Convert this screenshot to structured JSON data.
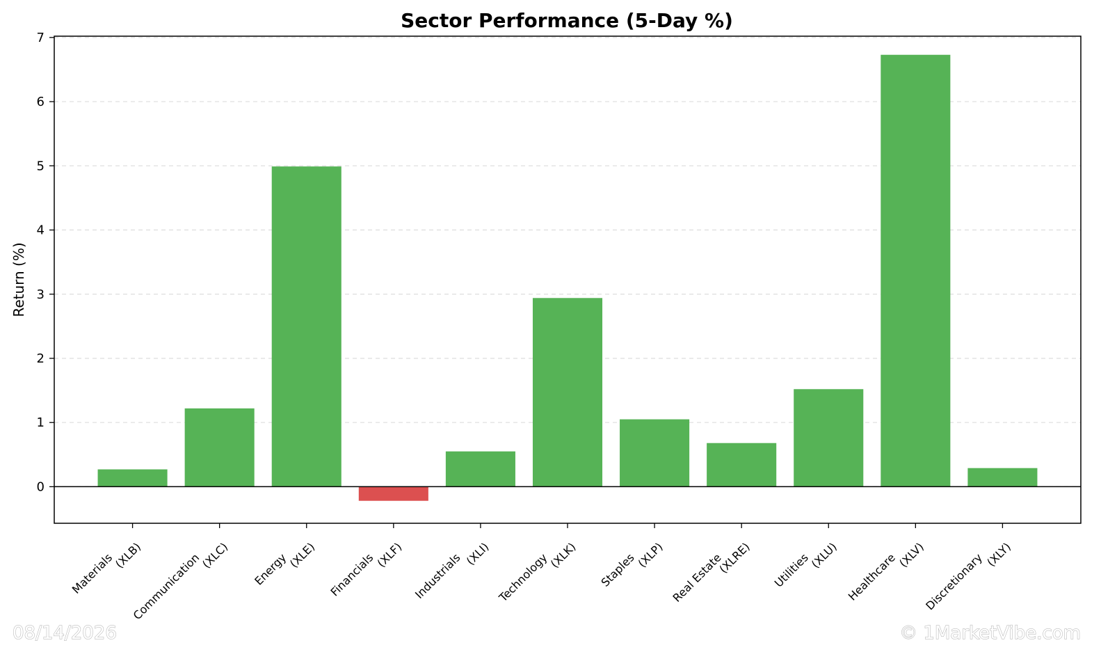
{
  "chart_data": {
    "type": "bar",
    "title": "Sector Performance (5-Day %)",
    "xlabel": "",
    "ylabel": "Return (%)",
    "categories": [
      [
        "Materials",
        "(XLB)"
      ],
      [
        "Communication",
        "(XLC)"
      ],
      [
        "Energy",
        "(XLE)"
      ],
      [
        "Financials",
        "(XLF)"
      ],
      [
        "Industrials",
        "(XLI)"
      ],
      [
        "Technology",
        "(XLK)"
      ],
      [
        "Staples",
        "(XLP)"
      ],
      [
        "Real Estate",
        "(XLRE)"
      ],
      [
        "Utilities",
        "(XLU)"
      ],
      [
        "Healthcare",
        "(XLV)"
      ],
      [
        "Discretionary",
        "(XLY)"
      ]
    ],
    "values": [
      0.27,
      1.22,
      4.99,
      -0.22,
      0.55,
      2.94,
      1.05,
      0.68,
      1.52,
      6.73,
      0.29
    ],
    "ylim": [
      -0.57,
      7.02
    ],
    "yticks": [
      0,
      1,
      2,
      3,
      4,
      5,
      6,
      7
    ],
    "grid": "y-dashed",
    "legend": "none",
    "positive_color": "#56b356",
    "negative_color": "#dc5050"
  },
  "footer": {
    "date": "08/14/2026",
    "copyright": "© 1MarketVibe.com"
  }
}
